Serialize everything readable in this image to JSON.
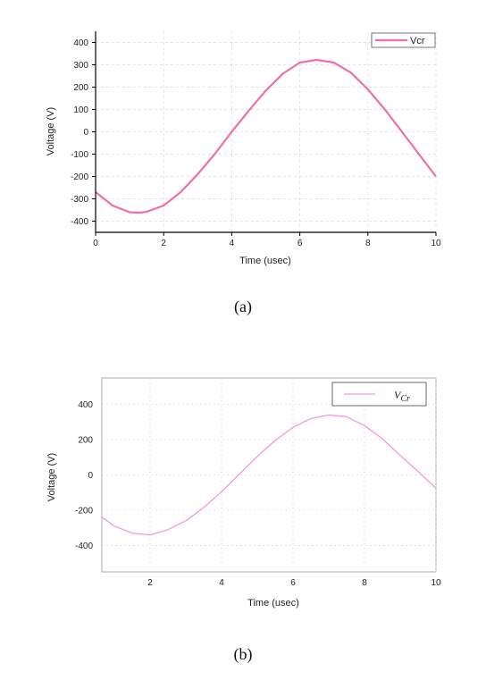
{
  "chart_data": [
    {
      "type": "line",
      "xlabel": "Time (usec)",
      "ylabel": "Voltage (V)",
      "xlim": [
        0,
        10
      ],
      "ylim": [
        -450,
        450
      ],
      "xticks": [
        "0",
        "2",
        "4",
        "6",
        "8",
        "10"
      ],
      "yticks": [
        "400",
        "300",
        "200",
        "100",
        "0",
        "-100",
        "-200",
        "-300",
        "-400"
      ],
      "grid": true,
      "legend_position": "top-right",
      "series": [
        {
          "name": "Vcr",
          "color": "#f06eaa",
          "x": [
            0,
            0.5,
            1.0,
            1.3,
            1.5,
            2.0,
            2.5,
            3.0,
            3.5,
            4.0,
            4.5,
            5.0,
            5.5,
            6.0,
            6.5,
            7.0,
            7.5,
            8.0,
            8.5,
            9.0,
            9.5,
            10.0
          ],
          "y": [
            -270,
            -330,
            -360,
            -362,
            -358,
            -330,
            -270,
            -190,
            -100,
            0,
            95,
            185,
            260,
            310,
            322,
            310,
            265,
            190,
            100,
            0,
            -100,
            -200
          ]
        }
      ],
      "caption": "(a)"
    },
    {
      "type": "line",
      "xlabel": "Time (usec)",
      "ylabel": "Voltage (V)",
      "xlim": [
        0.65,
        10
      ],
      "ylim": [
        -550,
        550
      ],
      "xticks": [
        "2",
        "4",
        "6",
        "8",
        "10"
      ],
      "yticks": [
        "400",
        "200",
        "0",
        "-200",
        "-400"
      ],
      "grid": true,
      "legend_position": "top-right",
      "series": [
        {
          "name": "V_Cr",
          "color": "#f29ad8",
          "x": [
            0.65,
            1.0,
            1.5,
            2.0,
            2.5,
            3.0,
            3.5,
            4.0,
            4.5,
            5.0,
            5.5,
            6.0,
            6.5,
            7.0,
            7.5,
            8.0,
            8.5,
            9.0,
            9.5,
            10.0
          ],
          "y": [
            -240,
            -290,
            -330,
            -340,
            -310,
            -260,
            -185,
            -95,
            5,
            105,
            195,
            270,
            320,
            340,
            330,
            280,
            205,
            110,
            20,
            -75
          ]
        }
      ],
      "caption": "(b)"
    }
  ]
}
